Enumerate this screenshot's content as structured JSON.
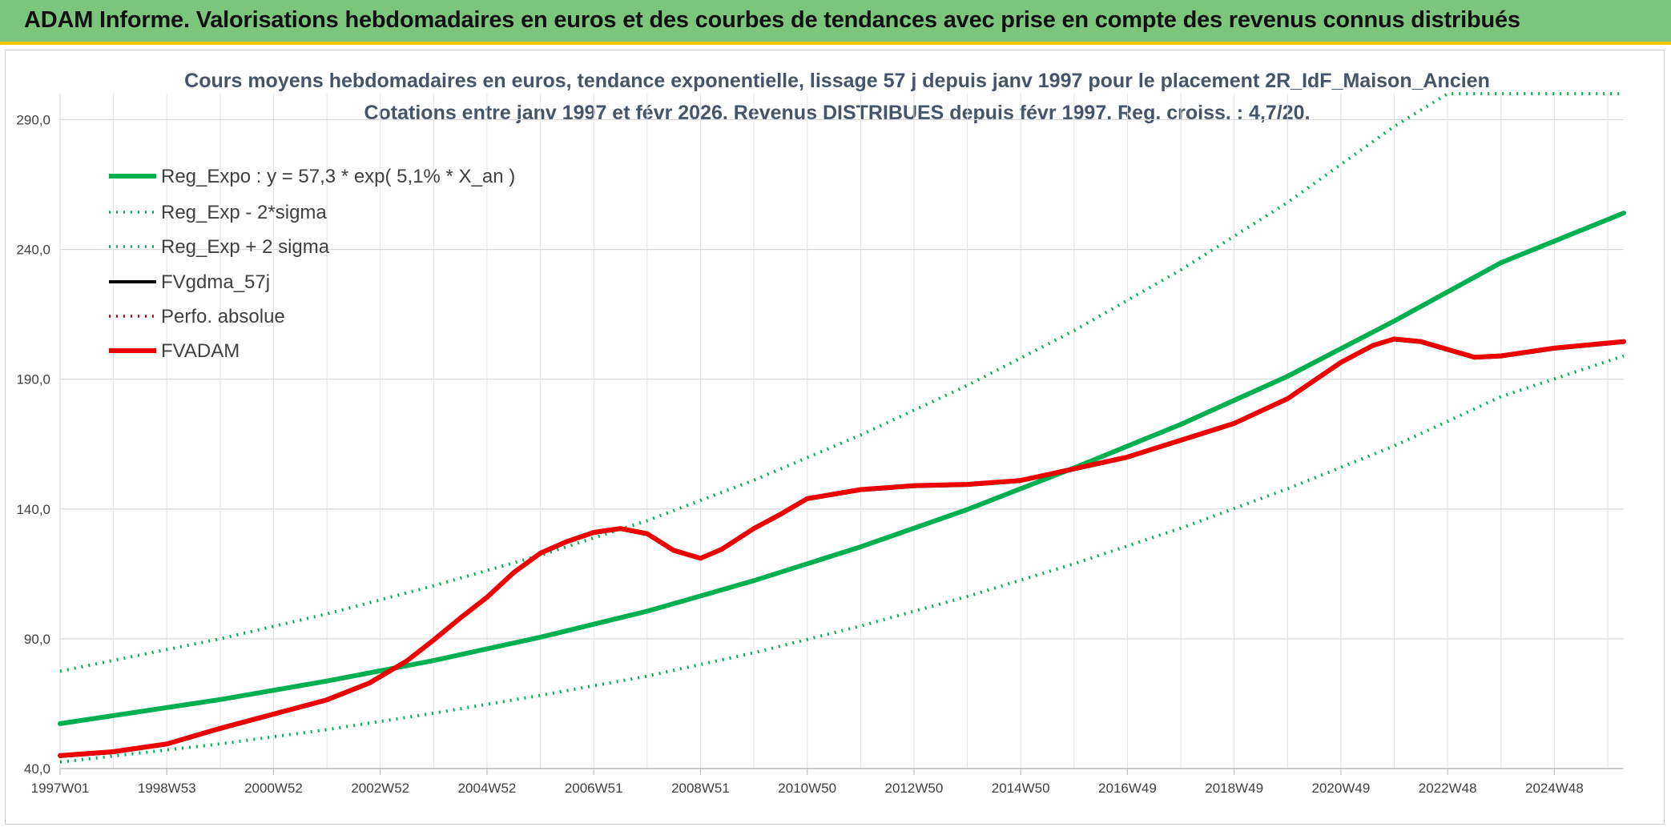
{
  "banner": {
    "title": "ADAM Informe. Valorisations hebdomadaires en euros et des courbes de tendances avec prise en compte des revenus connus distribués"
  },
  "colors": {
    "banner_bg": "#7cc57c",
    "trend_green": "#00b050",
    "fvadam_red": "#ee0000",
    "fvgdma_black": "#000000",
    "perfo_red": "#c00000",
    "title_text": "#44546a"
  },
  "chart_data": {
    "type": "line",
    "title": "Cours moyens hebdomadaires en euros, tendance exponentielle, lissage 57 j depuis janv 1997 pour le placement 2R_IdF_Maison_Ancien",
    "subtitle": "Cotations entre janv 1997 et févr 2026. Revenus DISTRIBUES depuis févr 1997. Reg. croiss. : 4,7/20.",
    "xlabel": "",
    "ylabel": "",
    "x_ticks": [
      "1997W01",
      "1998W53",
      "2000W52",
      "2002W52",
      "2004W52",
      "2006W51",
      "2008W51",
      "2010W50",
      "2012W50",
      "2014W50",
      "2016W49",
      "2018W49",
      "2020W49",
      "2022W48",
      "2024W48"
    ],
    "xlim": [
      1997.0,
      2026.3
    ],
    "y_ticks": [
      "40,0",
      "90,0",
      "140,0",
      "190,0",
      "240,0",
      "290,0"
    ],
    "ylim": [
      40,
      290
    ],
    "y_axis_max": 300,
    "grid": true,
    "legend_position": "top-left",
    "series": [
      {
        "name": "Reg_Expo : y = 57,3 * exp( 5,1% *  X_an )",
        "style": "solid-thick",
        "color": "#00b050",
        "x": [
          1997.0,
          2000.0,
          2002.0,
          2004.0,
          2006.0,
          2008.0,
          2010.0,
          2012.0,
          2014.0,
          2016.0,
          2018.0,
          2020.0,
          2022.0,
          2024.0,
          2026.3
        ],
        "y": [
          57.3,
          66.6,
          73.7,
          81.6,
          90.6,
          100.6,
          112.4,
          125.4,
          139.8,
          155.8,
          172.6,
          191.1,
          212.4,
          234.9,
          254.0
        ]
      },
      {
        "name": "Reg_Exp - 2*sigma",
        "style": "dotted",
        "color": "#00b050",
        "x": [
          1997.0,
          2000.0,
          2002.0,
          2004.0,
          2006.0,
          2008.0,
          2010.0,
          2012.0,
          2014.0,
          2016.0,
          2018.0,
          2020.0,
          2022.0,
          2024.0,
          2026.3
        ],
        "y": [
          42.5,
          49.5,
          55.0,
          61.3,
          68.2,
          75.6,
          84.6,
          94.9,
          106.3,
          118.9,
          132.6,
          147.8,
          164.3,
          183.3,
          199.0
        ]
      },
      {
        "name": "Reg_Exp + 2 sigma",
        "style": "dotted",
        "color": "#00b050",
        "x": [
          1997.0,
          2000.0,
          2002.0,
          2004.0,
          2006.0,
          2008.0,
          2010.0,
          2012.0,
          2014.0,
          2016.0,
          2018.0,
          2020.0,
          2022.0,
          2023.0,
          2024.0,
          2026.3
        ],
        "y": [
          77.5,
          90.0,
          99.6,
          110.4,
          122.2,
          135.5,
          151.1,
          168.5,
          187.6,
          208.7,
          232.1,
          258.1,
          287.4,
          300.0,
          300.0,
          300.0
        ]
      },
      {
        "name": "FVgdma_57j",
        "style": "solid",
        "color": "#000000",
        "x": [
          1997.0,
          1998.0,
          1999.0,
          2000.0,
          2001.0,
          2002.0,
          2002.8,
          2003.5,
          2004.0,
          2004.5,
          2005.0,
          2005.5,
          2006.0,
          2006.5,
          2007.0,
          2007.5,
          2008.0,
          2008.5,
          2009.0,
          2009.4,
          2010.0,
          2010.5,
          2011.0,
          2012.0,
          2013.0,
          2014.0,
          2015.0,
          2016.0,
          2017.0,
          2018.0,
          2019.0,
          2020.0,
          2021.0,
          2021.6,
          2022.0,
          2022.5,
          2023.0,
          2023.5,
          2024.0,
          2025.0,
          2026.3
        ],
        "y": [
          44.5,
          46.0,
          49.0,
          55.0,
          60.5,
          66.0,
          72.5,
          81.0,
          89.0,
          97.5,
          105.5,
          115.0,
          122.5,
          127.0,
          130.5,
          132.0,
          130.0,
          124.5,
          121.5,
          124.0,
          132.0,
          137.5,
          143.5,
          147.0,
          148.5,
          149.0,
          150.5,
          155.0,
          159.5,
          166.0,
          172.5,
          182.0,
          196.0,
          202.5,
          205.0,
          204.0,
          201.0,
          198.0,
          198.5,
          201.5,
          204.0
        ]
      },
      {
        "name": "Perfo. absolue",
        "style": "dotted",
        "color": "#c00000",
        "x": [],
        "y": []
      },
      {
        "name": "FVADAM",
        "style": "solid-thick",
        "color": "#ee0000",
        "x": [
          1997.0,
          1998.0,
          1999.0,
          2000.0,
          2001.0,
          2002.0,
          2002.8,
          2003.5,
          2004.0,
          2004.5,
          2005.0,
          2005.5,
          2006.0,
          2006.5,
          2007.0,
          2007.5,
          2008.0,
          2008.5,
          2009.0,
          2009.4,
          2010.0,
          2010.5,
          2011.0,
          2012.0,
          2013.0,
          2014.0,
          2015.0,
          2016.0,
          2017.0,
          2018.0,
          2019.0,
          2020.0,
          2021.0,
          2021.6,
          2022.0,
          2022.5,
          2023.0,
          2023.5,
          2024.0,
          2025.0,
          2026.3
        ],
        "y": [
          45.0,
          46.5,
          49.5,
          55.5,
          61.0,
          66.5,
          73.0,
          81.5,
          89.5,
          98.0,
          106.0,
          115.5,
          123.0,
          127.5,
          131.0,
          132.5,
          130.5,
          124.0,
          121.0,
          124.5,
          132.5,
          138.0,
          144.0,
          147.5,
          149.0,
          149.5,
          151.0,
          155.5,
          160.0,
          166.5,
          173.0,
          182.5,
          196.5,
          203.0,
          205.5,
          204.5,
          201.5,
          198.5,
          199.0,
          202.0,
          204.5
        ]
      }
    ]
  }
}
